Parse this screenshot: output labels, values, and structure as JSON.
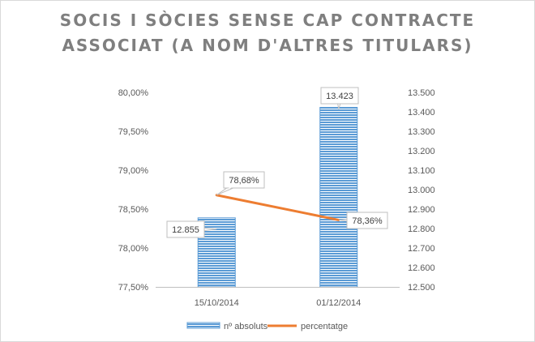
{
  "chart_data": {
    "type": "bar+line",
    "title_lines": [
      "SOCIS I SÒCIES SENSE CAP CONTRACTE",
      "ASSOCIAT (A NOM D'ALTRES TITULARS)"
    ],
    "categories": [
      "15/10/2014",
      "01/12/2014"
    ],
    "series": [
      {
        "name": "nº absoluts",
        "type": "bar",
        "axis": "right",
        "values": [
          12855,
          13423
        ],
        "labels": [
          "12.855",
          "13.423"
        ],
        "color": "#5b9bd5"
      },
      {
        "name": "percentatge",
        "type": "line",
        "axis": "left",
        "values": [
          78.68,
          78.36
        ],
        "labels": [
          "78,68%",
          "78,36%"
        ],
        "color": "#ed7d31"
      }
    ],
    "y_left": {
      "min": 77.5,
      "max": 80.0,
      "step": 0.5,
      "tick_labels": [
        "77,50%",
        "78,00%",
        "78,50%",
        "79,00%",
        "79,50%",
        "80,00%"
      ]
    },
    "y_right": {
      "min": 12500,
      "max": 13500,
      "step": 100,
      "tick_labels": [
        "12.500",
        "12.600",
        "12.700",
        "12.800",
        "12.900",
        "13.000",
        "13.100",
        "13.200",
        "13.300",
        "13.400",
        "13.500"
      ]
    },
    "grid": false,
    "legend_position": "bottom"
  }
}
